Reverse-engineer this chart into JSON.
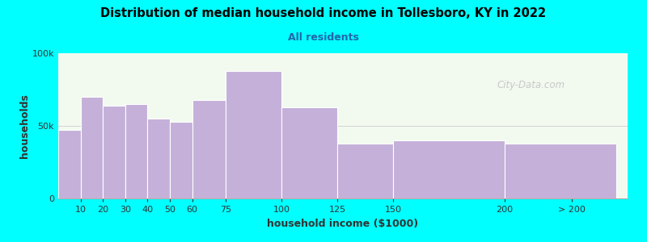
{
  "title": "Distribution of median household income in Tollesboro, KY in 2022",
  "subtitle": "All residents",
  "xlabel": "household income ($1000)",
  "ylabel": "households",
  "bar_color": "#c4b0d8",
  "background_color": "#00ffff",
  "plot_bg": "#f2faf0",
  "categories": [
    "10",
    "20",
    "30",
    "40",
    "50",
    "60",
    "75",
    "100",
    "125",
    "150",
    "200",
    "> 200"
  ],
  "bin_left": [
    0,
    10,
    20,
    30,
    40,
    50,
    60,
    75,
    100,
    125,
    150,
    200
  ],
  "bin_right": [
    10,
    20,
    30,
    40,
    50,
    60,
    75,
    100,
    125,
    150,
    200,
    250
  ],
  "values": [
    47000,
    70000,
    64000,
    65000,
    55000,
    53000,
    68000,
    88000,
    63000,
    38000,
    40000,
    38000
  ],
  "ylim": [
    0,
    100000
  ],
  "ytick_labels": [
    "0",
    "50k",
    "100k"
  ],
  "ytick_vals": [
    0,
    50000,
    100000
  ],
  "watermark": "City-Data.com"
}
